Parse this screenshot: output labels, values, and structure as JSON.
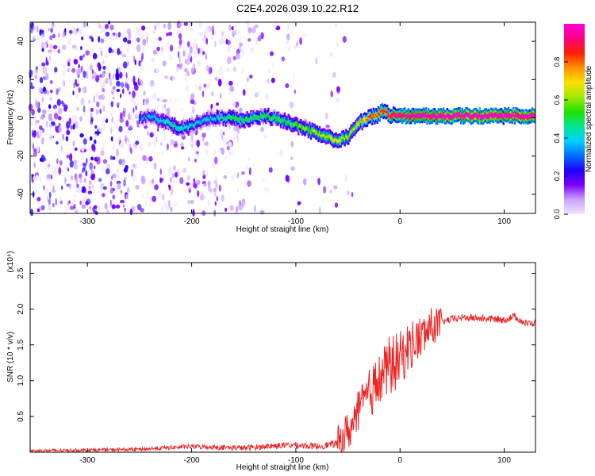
{
  "page": {
    "title": "C2E4.2026.039.10.22.R12"
  },
  "chart_data": [
    {
      "type": "heatmap",
      "xlabel": "Height of straight line (km)",
      "ylabel": "Frequency (Hz)",
      "xlim": [
        -355,
        130
      ],
      "ylim": [
        -50,
        50
      ],
      "x_ticks": [
        -300,
        -200,
        -100,
        0,
        100
      ],
      "y_ticks": [
        -40,
        -20,
        0,
        20,
        40
      ],
      "colorbar": {
        "label": "Normalized spectral amplitude",
        "range": [
          0,
          1
        ],
        "ticks": [
          "0.0",
          "0.2",
          "0.4",
          "0.6",
          "0.8"
        ],
        "colors": [
          "#f2e6ff",
          "#c9a3ff",
          "#7b00ff",
          "#2000ff",
          "#0070ff",
          "#00d0ff",
          "#00e890",
          "#20e000",
          "#a0e800",
          "#ffe000",
          "#ff9000",
          "#ff2000",
          "#ff0080",
          "#ff00d8"
        ]
      },
      "ridge": {
        "x": [
          -250,
          -240,
          -230,
          -220,
          -210,
          -200,
          -190,
          -180,
          -170,
          -160,
          -150,
          -140,
          -130,
          -120,
          -110,
          -100,
          -90,
          -80,
          -70,
          -60,
          -50,
          -40,
          -30,
          -20,
          -15,
          -10,
          -5,
          0,
          10,
          20,
          40,
          60,
          80,
          100,
          120,
          130
        ],
        "y": [
          0,
          1,
          -1,
          -3,
          -6,
          -4,
          -2,
          0,
          0,
          0,
          -1,
          0,
          1,
          0,
          -2,
          -4,
          -6,
          -8,
          -10,
          -12,
          -10,
          -3,
          0,
          2,
          4,
          1,
          2,
          1,
          1,
          1,
          1,
          1,
          1,
          1,
          1,
          1
        ],
        "peak_amplitude": [
          0.25,
          0.3,
          0.35,
          0.4,
          0.38,
          0.35,
          0.33,
          0.35,
          0.4,
          0.45,
          0.45,
          0.45,
          0.45,
          0.45,
          0.45,
          0.5,
          0.5,
          0.55,
          0.55,
          0.6,
          0.55,
          0.6,
          0.7,
          0.75,
          0.75,
          0.8,
          0.85,
          0.85,
          0.88,
          0.9,
          0.92,
          0.92,
          0.95,
          0.9,
          0.92,
          0.9
        ]
      }
    },
    {
      "type": "line",
      "xlabel": "Height of straight line (km)",
      "ylabel": "SNR (10 * v/v)",
      "y_multiplier": "(x10⁴)",
      "xlim": [
        -355,
        130
      ],
      "ylim": [
        0,
        2.65
      ],
      "x_ticks": [
        -300,
        -200,
        -100,
        0,
        100
      ],
      "y_ticks": [
        0.5,
        1.0,
        1.5,
        2.0,
        2.5
      ],
      "series": [
        {
          "color": "#ee2222",
          "x": [
            -355,
            -300,
            -250,
            -200,
            -150,
            -120,
            -100,
            -80,
            -60,
            -50,
            -45,
            -40,
            -30,
            -20,
            -15,
            -10,
            -5,
            0,
            5,
            10,
            15,
            20,
            30,
            40,
            50,
            60,
            80,
            100,
            110,
            120,
            130
          ],
          "y": [
            0.02,
            0.03,
            0.04,
            0.08,
            0.06,
            0.09,
            0.1,
            0.08,
            0.12,
            0.3,
            0.35,
            0.55,
            0.8,
            1.0,
            1.1,
            1.2,
            1.25,
            1.3,
            1.4,
            1.5,
            1.55,
            1.6,
            1.75,
            1.82,
            1.86,
            1.88,
            1.87,
            1.85,
            1.9,
            1.8,
            1.8
          ]
        }
      ]
    }
  ]
}
